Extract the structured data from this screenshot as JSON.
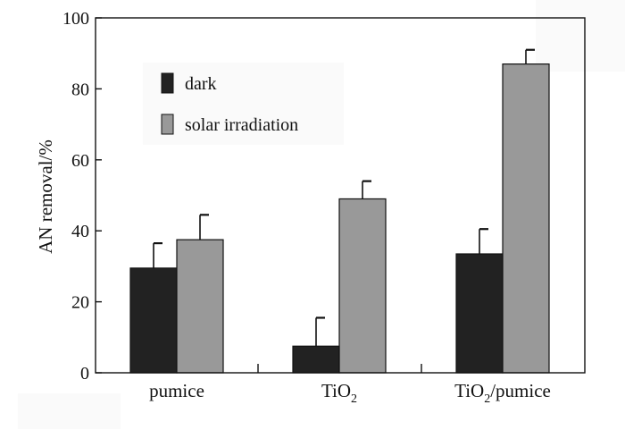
{
  "chart_data": {
    "type": "bar",
    "categories": [
      {
        "main": "pumice",
        "sub": "",
        "tail": ""
      },
      {
        "main": "TiO",
        "sub": "2",
        "tail": ""
      },
      {
        "main": "TiO",
        "sub": "2",
        "tail": "/pumice"
      }
    ],
    "series": [
      {
        "name": "dark",
        "color": "#222222",
        "values": [
          29.5,
          7.5,
          33.5
        ],
        "errors": [
          7,
          8,
          7
        ]
      },
      {
        "name": "solar irradiation",
        "color": "#999999",
        "values": [
          37.5,
          49,
          87
        ],
        "errors": [
          7,
          5,
          4
        ]
      }
    ],
    "ylabel": "AN removal/%",
    "ylim": [
      0,
      100
    ],
    "yticks": [
      0,
      20,
      40,
      60,
      80,
      100
    ],
    "legend_position": "top-left",
    "grid": false
  }
}
